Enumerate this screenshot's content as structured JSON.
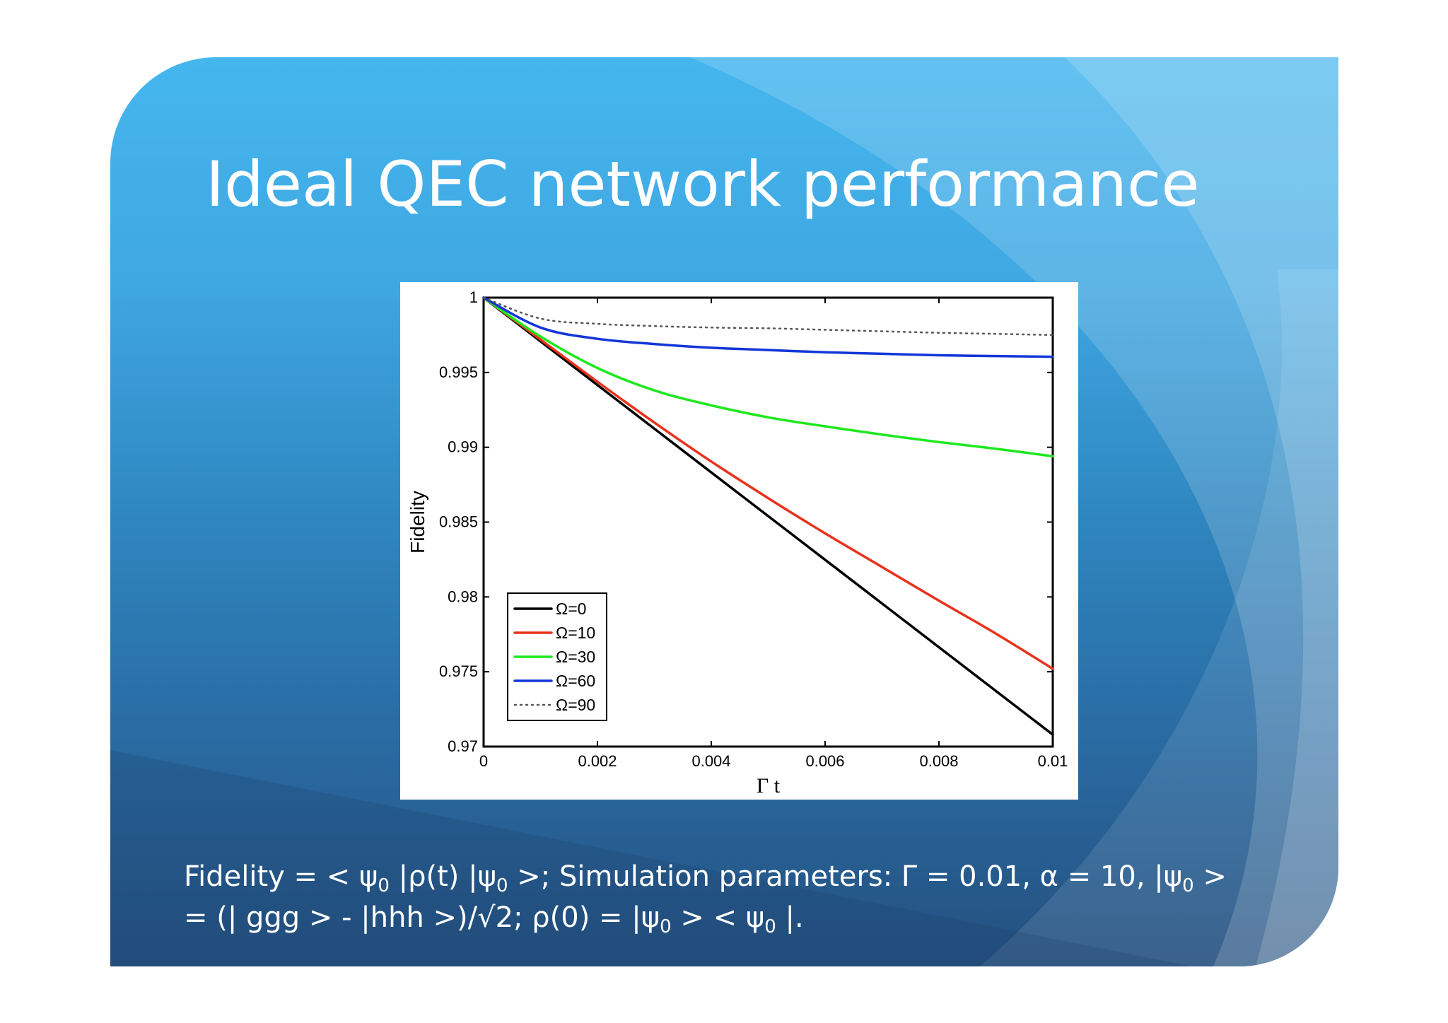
{
  "slide": {
    "title": "Ideal QEC network performance",
    "caption": {
      "line1": {
        "p1": "Fidelity = < ψ",
        "s1": "0",
        "p2": " |ρ(t) |ψ",
        "s2": "0",
        "p3": " >;  Simulation parameters: Γ = 0.01, α = 10, |ψ",
        "s3": "0",
        "p4": " >"
      },
      "line2": {
        "p1": "= (| ggg > - |hhh >)/√2; ρ(0) = |ψ",
        "s1": "0",
        "p2": " > < ψ",
        "s2": "0",
        "p3": " |."
      }
    }
  },
  "colors": {
    "black": "#000000",
    "red": "#e8321c",
    "green": "#1ee81e",
    "blue": "#1436d8",
    "dotted": "#555555"
  },
  "chart_data": {
    "type": "line",
    "xlabel": "Γ t",
    "ylabel": "Fidelity",
    "xlim": [
      0,
      0.01
    ],
    "ylim": [
      0.97,
      1
    ],
    "xticks": [
      0,
      0.002,
      0.004,
      0.006,
      0.008,
      0.01
    ],
    "xtick_labels": [
      "0",
      "0.002",
      "0.004",
      "0.006",
      "0.008",
      "0.01"
    ],
    "yticks": [
      0.97,
      0.975,
      0.98,
      0.985,
      0.99,
      0.995,
      1
    ],
    "ytick_labels": [
      "0.97",
      "0.975",
      "0.98",
      "0.985",
      "0.99",
      "0.995",
      "1"
    ],
    "legend_position": "bottom-left",
    "grid": false,
    "x": [
      0,
      0.001,
      0.002,
      0.003,
      0.004,
      0.005,
      0.006,
      0.007,
      0.008,
      0.009,
      0.01
    ],
    "series": [
      {
        "name": "Ω=0",
        "color": "black",
        "style": "solid",
        "values": [
          1.0,
          0.99708,
          0.99416,
          0.99124,
          0.98832,
          0.9854,
          0.98248,
          0.97956,
          0.97664,
          0.97372,
          0.9708
        ]
      },
      {
        "name": "Ω=10",
        "color": "red",
        "style": "solid",
        "values": [
          1.0,
          0.9972,
          0.99438,
          0.99165,
          0.98905,
          0.9866,
          0.98425,
          0.982,
          0.97975,
          0.97755,
          0.9752
        ]
      },
      {
        "name": "Ω=30",
        "color": "green",
        "style": "solid",
        "values": [
          1.0,
          0.9974,
          0.9953,
          0.9938,
          0.9928,
          0.992,
          0.9914,
          0.99085,
          0.99035,
          0.9899,
          0.9894
        ]
      },
      {
        "name": "Ω=60",
        "color": "blue",
        "style": "solid",
        "values": [
          1.0,
          0.998,
          0.99725,
          0.9969,
          0.99665,
          0.9965,
          0.99635,
          0.99625,
          0.99615,
          0.9961,
          0.99605
        ]
      },
      {
        "name": "Ω=90",
        "color": "dotted",
        "style": "dotted",
        "values": [
          1.0,
          0.9986,
          0.99825,
          0.9981,
          0.998,
          0.99795,
          0.99785,
          0.99775,
          0.99765,
          0.99758,
          0.9975
        ]
      }
    ]
  }
}
